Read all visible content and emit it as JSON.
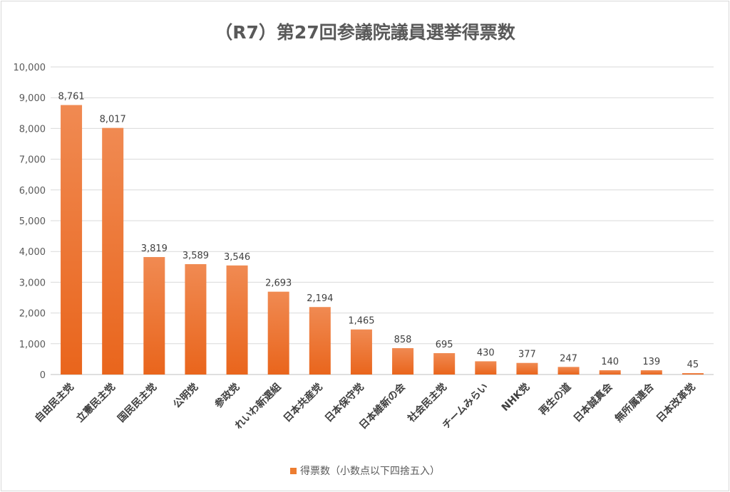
{
  "chart_data": {
    "type": "bar",
    "title": "（R7）第27回参議院議員選挙得票数",
    "xlabel": "",
    "ylabel": "",
    "ylim": [
      0,
      10000
    ],
    "yticks": [
      0,
      1000,
      2000,
      3000,
      4000,
      5000,
      6000,
      7000,
      8000,
      9000,
      10000
    ],
    "ytick_labels": [
      "0",
      "1,000",
      "2,000",
      "3,000",
      "4,000",
      "5,000",
      "6,000",
      "7,000",
      "8,000",
      "9,000",
      "10,000"
    ],
    "grid": true,
    "legend_position": "bottom",
    "categories": [
      "自由民主党",
      "立憲民主党",
      "国民民主党",
      "公明党",
      "参政党",
      "れいわ新選組",
      "日本共産党",
      "日本保守党",
      "日本維新の会",
      "社会民主党",
      "チームみらい",
      "NHK党",
      "再生の道",
      "日本誠真会",
      "無所属連合",
      "日本改革党"
    ],
    "series": [
      {
        "name": "得票数（小数点以下四捨五入）",
        "color": "#ed7d31",
        "values": [
          8761,
          8017,
          3819,
          3589,
          3546,
          2693,
          2194,
          1465,
          858,
          695,
          430,
          377,
          247,
          140,
          139,
          45
        ],
        "value_labels": [
          "8,761",
          "8,017",
          "3,819",
          "3,589",
          "3,546",
          "2,693",
          "2,194",
          "1,465",
          "858",
          "695",
          "430",
          "377",
          "247",
          "140",
          "139",
          "45"
        ]
      }
    ]
  }
}
